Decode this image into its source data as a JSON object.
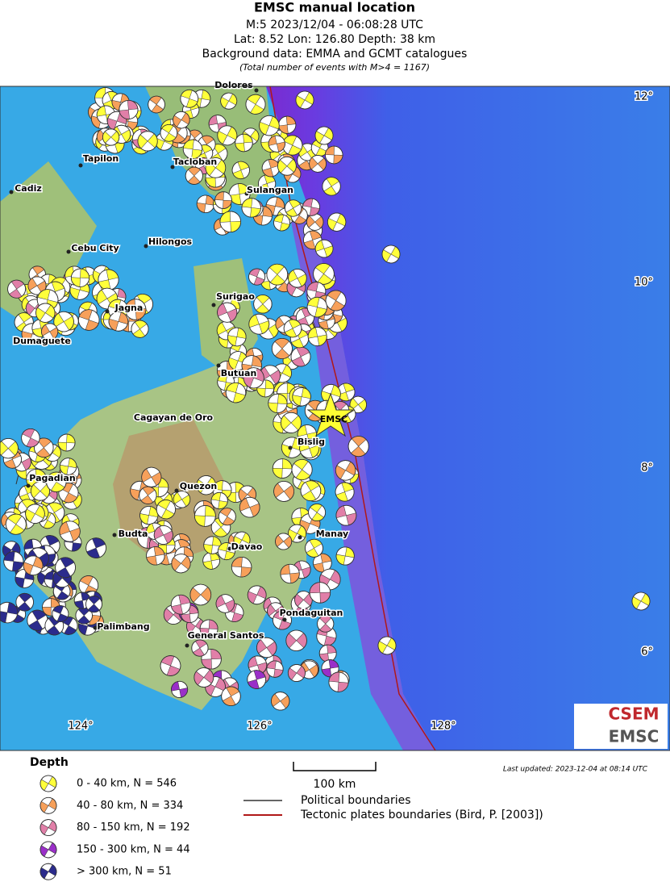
{
  "header": {
    "title": "EMSC manual location",
    "lines": [
      "M:5 2023/12/04 - 06:08:28 UTC",
      "Lat: 8.52 Lon: 126.80 Depth: 38 km",
      "Background data: EMMA and GCMT catalogues"
    ],
    "note": "(Total number of events with M>4 = 1167)"
  },
  "map": {
    "places": [
      "Dolores",
      "Tapilon",
      "Tacloban",
      "Sulangan",
      "Cadiz",
      "Cebu City",
      "Hilongos",
      "Surigao",
      "Jagna",
      "Dumaguete",
      "Butuan",
      "Cagayan de Oro",
      "Bislig",
      "Pagadian",
      "Quezon",
      "Manay",
      "Budta",
      "Davao",
      "Pondaguitan",
      "Palimbang",
      "General Santos"
    ],
    "lat_labels": [
      "12°",
      "10°",
      "8°",
      "6°"
    ],
    "lon_labels": [
      "124°",
      "126°",
      "128°"
    ],
    "epicenter_label": "EMSC",
    "logo": [
      "CSEM",
      "EMSC"
    ]
  },
  "legend": {
    "title": "Depth",
    "items": [
      "0 - 40 km, N = 546",
      "40 - 80 km, N = 334",
      "80 - 150 km, N = 192",
      "150 - 300 km, N = 44",
      "> 300 km, N = 51"
    ],
    "scale": "100 km",
    "lines": [
      "Political boundaries",
      "Tectonic plates boundaries (Bird, P. [2003])"
    ],
    "updated": "Last updated: 2023-12-04 at 08:14 UTC"
  }
}
